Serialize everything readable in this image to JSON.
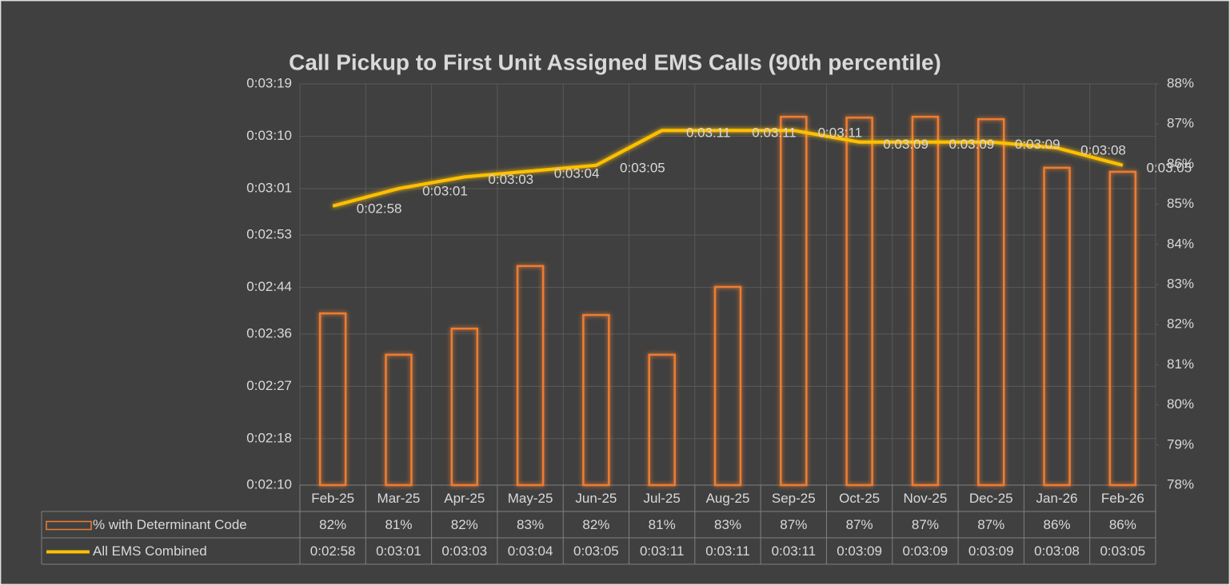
{
  "chart_data": {
    "type": "combo",
    "title": "Call Pickup to First Unit Assigned EMS Calls (90th percentile)",
    "categories": [
      "Feb-25",
      "Mar-25",
      "Apr-25",
      "May-25",
      "Jun-25",
      "Jul-25",
      "Aug-25",
      "Sep-25",
      "Oct-25",
      "Nov-25",
      "Dec-25",
      "Jan-26",
      "Feb-26"
    ],
    "series": [
      {
        "name": "% with Determinant Code",
        "type": "bar",
        "axis": "y2",
        "color": "#ed7d31",
        "values": [
          82.28,
          81.25,
          81.9,
          83.46,
          82.24,
          81.25,
          82.94,
          87.18,
          87.16,
          87.18,
          87.12,
          85.91,
          85.81
        ],
        "value_labels": [
          "82%",
          "81%",
          "82%",
          "83%",
          "82%",
          "81%",
          "83%",
          "87%",
          "87%",
          "87%",
          "87%",
          "86%",
          "86%"
        ]
      },
      {
        "name": "All EMS Combined",
        "type": "line",
        "color": "#ffc000",
        "values": [
          178,
          181,
          183,
          184,
          185,
          191,
          191,
          191,
          189,
          189,
          189,
          188,
          185
        ],
        "value_labels": [
          "0:02:58",
          "0:03:01",
          "0:03:03",
          "0:03:04",
          "0:03:05",
          "0:03:11",
          "0:03:11",
          "0:03:11",
          "0:03:09",
          "0:03:09",
          "0:03:09",
          "0:03:08",
          "0:03:05"
        ]
      }
    ],
    "ylim": [
      130,
      199
    ],
    "yticks": [
      {
        "value": 130,
        "label": "0:02:10"
      },
      {
        "value": 138,
        "label": "0:02:18"
      },
      {
        "value": 147,
        "label": "0:02:27"
      },
      {
        "value": 156,
        "label": "0:02:36"
      },
      {
        "value": 164,
        "label": "0:02:44"
      },
      {
        "value": 173,
        "label": "0:02:53"
      },
      {
        "value": 181,
        "label": "0:03:01"
      },
      {
        "value": 190,
        "label": "0:03:10"
      },
      {
        "value": 199,
        "label": "0:03:19"
      }
    ],
    "y2lim": [
      78,
      88
    ],
    "y2ticks": [
      {
        "value": 78,
        "label": "78%"
      },
      {
        "value": 79,
        "label": "79%"
      },
      {
        "value": 80,
        "label": "80%"
      },
      {
        "value": 81,
        "label": "81%"
      },
      {
        "value": 82,
        "label": "82%"
      },
      {
        "value": 83,
        "label": "83%"
      },
      {
        "value": 84,
        "label": "84%"
      },
      {
        "value": 85,
        "label": "85%"
      },
      {
        "value": 86,
        "label": "86%"
      },
      {
        "value": 87,
        "label": "87%"
      },
      {
        "value": 88,
        "label": "88%"
      }
    ],
    "grid": true
  }
}
